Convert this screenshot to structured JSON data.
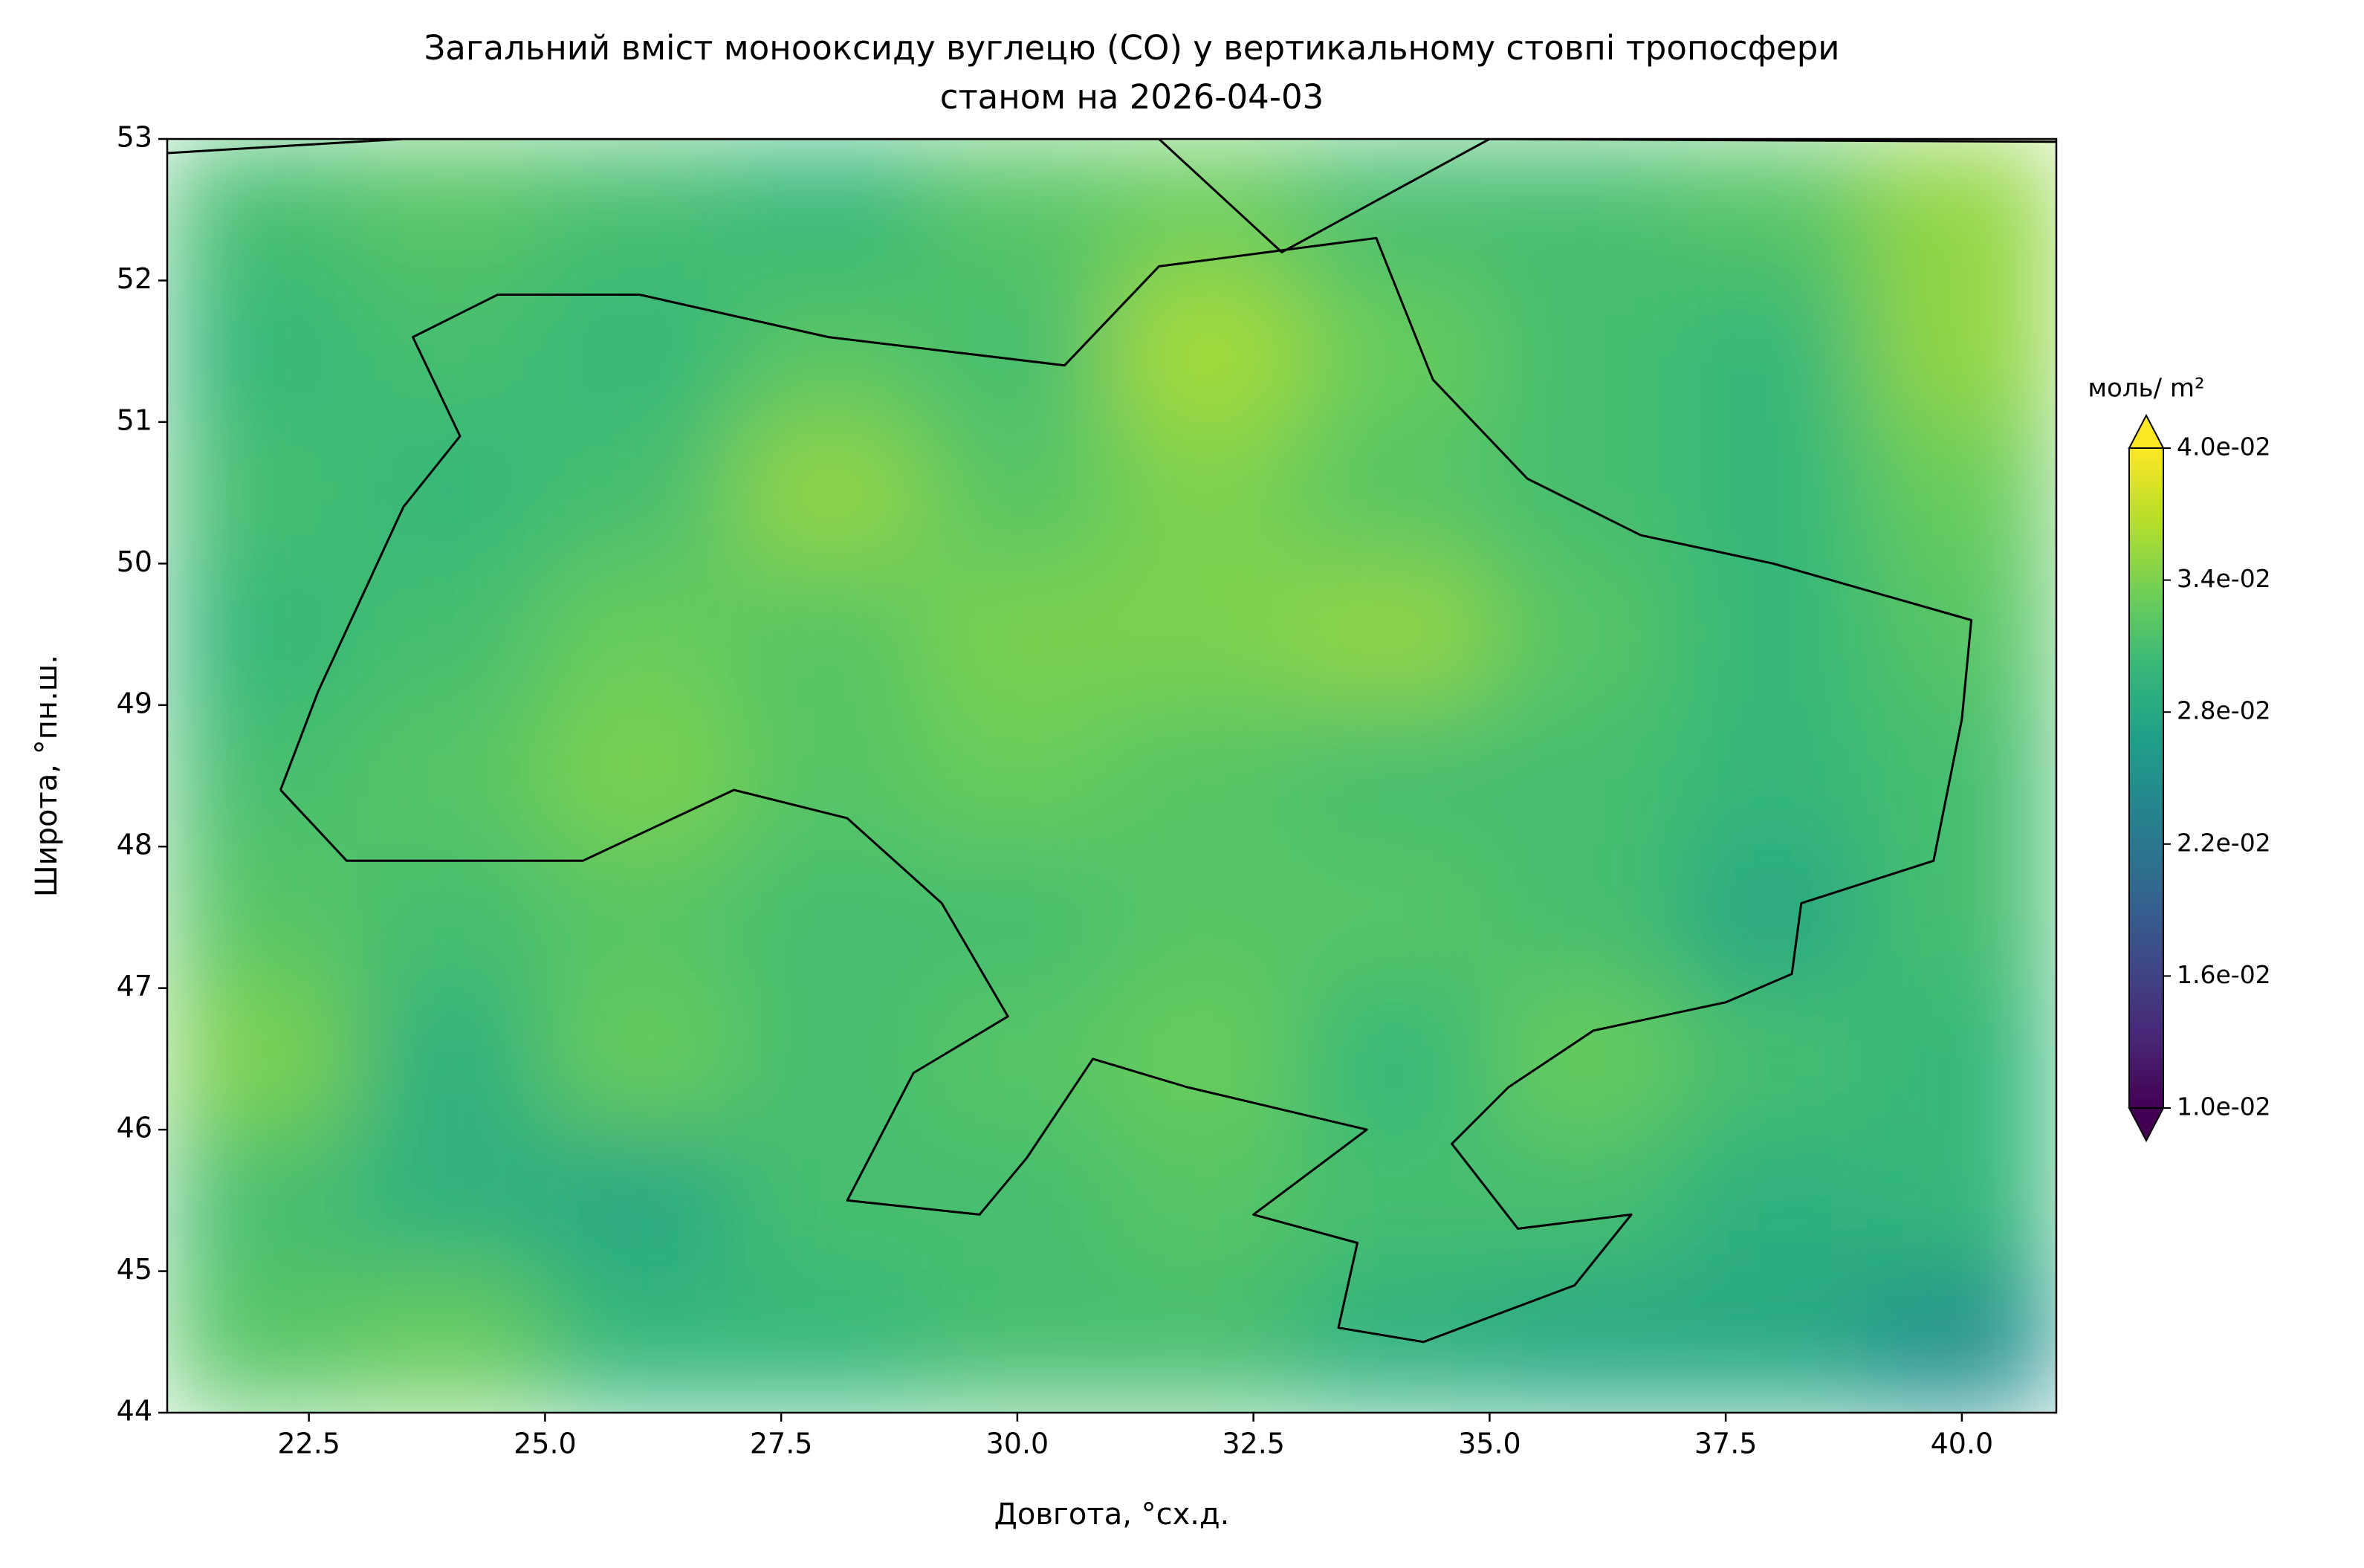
{
  "chart_data": {
    "type": "contour",
    "title": "Загальний вміст монооксиду вуглецю (CO) у вертикальному стовпі тропосфери",
    "subtitle": "станом на 2026-04-03",
    "x_label": "Довгота, °сх.д.",
    "y_label": "Широта, °пн.ш.",
    "xlim": [
      21,
      41
    ],
    "ylim": [
      44,
      53
    ],
    "xticks": [
      22.5,
      {
        "value": 25,
        "label": "25.0"
      },
      27.5,
      {
        "value": 30,
        "label": "30.0"
      },
      32.5,
      {
        "value": 35,
        "label": "35.0"
      },
      37.5,
      {
        "value": 40,
        "label": "40.0"
      }
    ],
    "yticks": [
      44,
      45,
      46,
      47,
      48,
      49,
      50,
      51,
      52,
      53
    ],
    "colormap": "viridis",
    "colorbar": {
      "label": "моль/ m²",
      "lim": [
        0.01,
        0.04
      ],
      "ticks": [
        {
          "value": 0.04,
          "label": "4.0e-02"
        },
        {
          "value": 0.034,
          "label": "3.4e-02"
        },
        {
          "value": 0.028,
          "label": "2.8e-02"
        },
        {
          "value": 0.022,
          "label": "2.2e-02"
        },
        {
          "value": 0.016,
          "label": "1.6e-02"
        },
        {
          "value": 0.01,
          "label": "1.0e-02"
        }
      ]
    },
    "x": [
      22,
      24,
      26,
      28,
      30,
      32,
      34,
      36,
      38,
      40
    ],
    "y": [
      52.5,
      51.5,
      50.5,
      49.5,
      48.5,
      47.5,
      46.5,
      45.5,
      44.5
    ],
    "z": [
      [
        0.031,
        0.032,
        0.031,
        0.03,
        0.032,
        0.033,
        0.031,
        0.031,
        0.032,
        0.035
      ],
      [
        0.03,
        0.031,
        0.03,
        0.032,
        0.031,
        0.036,
        0.033,
        0.031,
        0.03,
        0.035
      ],
      [
        0.031,
        0.03,
        0.031,
        0.035,
        0.032,
        0.034,
        0.032,
        0.031,
        0.03,
        0.033
      ],
      [
        0.03,
        0.031,
        0.033,
        0.032,
        0.034,
        0.034,
        0.035,
        0.032,
        0.03,
        0.032
      ],
      [
        0.031,
        0.032,
        0.034,
        0.032,
        0.033,
        0.032,
        0.031,
        0.031,
        0.03,
        0.031
      ],
      [
        0.032,
        0.031,
        0.032,
        0.031,
        0.031,
        0.032,
        0.032,
        0.031,
        0.028,
        0.031
      ],
      [
        0.034,
        0.029,
        0.033,
        0.031,
        0.032,
        0.033,
        0.03,
        0.033,
        0.031,
        0.03
      ],
      [
        0.031,
        0.029,
        0.028,
        0.031,
        0.031,
        0.032,
        0.031,
        0.031,
        0.029,
        0.03
      ],
      [
        0.032,
        0.033,
        0.03,
        0.03,
        0.031,
        0.031,
        0.029,
        0.028,
        0.028,
        0.025
      ]
    ]
  }
}
